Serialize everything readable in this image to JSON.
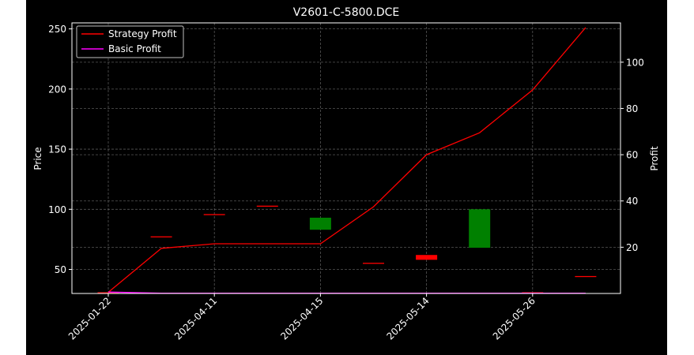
{
  "figure": {
    "background": "#000000",
    "page_background": "#ffffff"
  },
  "chart_data": {
    "type": "candlestick+line",
    "title": "V2601-C-5800.DCE",
    "xlabel": "",
    "ylabel_left": "Price",
    "ylabel_right": "Profit",
    "grid": true,
    "legend_position": "top-left",
    "x_tick_labels": [
      "2025-01-22",
      "2025-04-11",
      "2025-04-15",
      "2025-05-14",
      "2025-05-26"
    ],
    "left_axis": {
      "ylim": [
        30,
        255
      ],
      "ticks": [
        50,
        100,
        150,
        200,
        250
      ]
    },
    "right_axis": {
      "ylim": [
        0,
        117
      ],
      "ticks": [
        20,
        40,
        60,
        80,
        100
      ]
    },
    "candles": [
      {
        "i": 0,
        "open": 31,
        "close": 31,
        "color": "#ff0000"
      },
      {
        "i": 1,
        "open": 77.5,
        "close": 77.5,
        "color": "#ff0000"
      },
      {
        "i": 2,
        "open": 96,
        "close": 96,
        "color": "#ff0000"
      },
      {
        "i": 3,
        "open": 103,
        "close": 103,
        "color": "#ff0000"
      },
      {
        "i": 4,
        "open": 83,
        "close": 93,
        "color": "#008000"
      },
      {
        "i": 5,
        "open": 55.5,
        "close": 55.5,
        "color": "#ff0000"
      },
      {
        "i": 6,
        "open": 62,
        "close": 58,
        "color": "#ff0000"
      },
      {
        "i": 7,
        "open": 68,
        "close": 100,
        "color": "#008000"
      },
      {
        "i": 8,
        "open": 31,
        "close": 31,
        "color": "#ff0000"
      },
      {
        "i": 9,
        "open": 44.5,
        "close": 44.5,
        "color": "#ff0000"
      }
    ],
    "series": [
      {
        "name": "Strategy Profit",
        "color": "#ff0000",
        "values": [
          0.5,
          19.5,
          21.5,
          21.5,
          21.5,
          37.5,
          60,
          69.5,
          88,
          115
        ]
      },
      {
        "name": "Basic Profit",
        "color": "#ff00ff",
        "values": [
          0.6,
          0.1,
          0.1,
          0.1,
          0.1,
          0.1,
          0.1,
          0.1,
          0.1,
          0.1
        ]
      }
    ]
  }
}
